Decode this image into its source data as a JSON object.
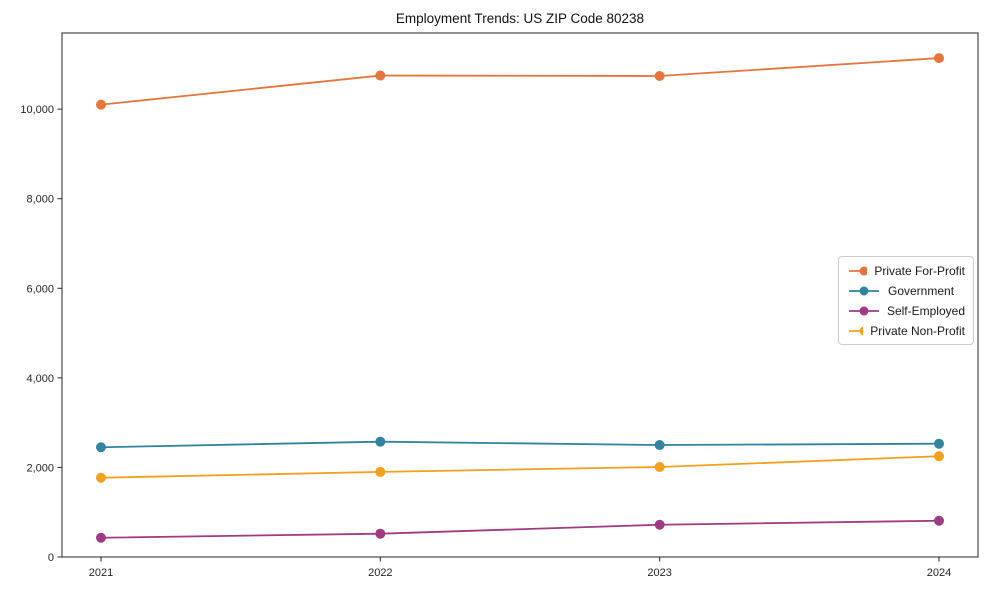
{
  "figure": {
    "background": "#ffffff"
  },
  "chart_data": {
    "type": "line",
    "title": "Employment Trends: US ZIP Code 80238",
    "categories": [
      "2021",
      "2022",
      "2023",
      "2024"
    ],
    "series": [
      {
        "name": "Private For-Profit",
        "color": "#e4753c",
        "values": [
          10100,
          10750,
          10740,
          11140
        ]
      },
      {
        "name": "Government",
        "color": "#31839f",
        "values": [
          2450,
          2575,
          2500,
          2530
        ]
      },
      {
        "name": "Self-Employed",
        "color": "#a03a82",
        "values": [
          430,
          520,
          720,
          810
        ]
      },
      {
        "name": "Private Non-Profit",
        "color": "#f3a01c",
        "values": [
          1770,
          1900,
          2010,
          2250
        ]
      }
    ],
    "xlabel": "",
    "ylabel": "",
    "ylim": [
      0,
      11700
    ],
    "yticks": [
      0,
      2000,
      4000,
      6000,
      8000,
      10000
    ],
    "ytick_labels": [
      "0",
      "2,000",
      "4,000",
      "6,000",
      "8,000",
      "10,000"
    ],
    "grid": false,
    "marker": "circle",
    "axis_color": "#262626",
    "legend": {
      "position": "center-right",
      "border_color": "#cccccc",
      "background": "#ffffff"
    }
  }
}
